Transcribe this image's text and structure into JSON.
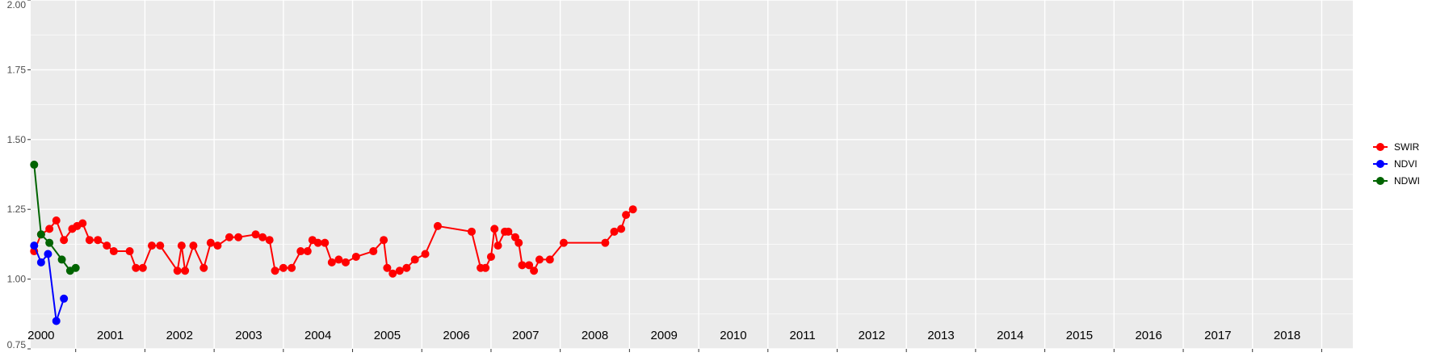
{
  "chart_data": {
    "type": "line",
    "title": "",
    "xlabel": "",
    "ylabel": "",
    "xlim": [
      1999.85,
      2018.95
    ],
    "ylim": [
      0.75,
      2.0
    ],
    "y_ticks": [
      "0.75",
      "1.00",
      "1.25",
      "1.50",
      "1.75",
      "2.00"
    ],
    "grid": true,
    "legend_position": "right",
    "year_labels": [
      {
        "x": 2000,
        "text": "2000"
      },
      {
        "x": 2001,
        "text": "2001"
      },
      {
        "x": 2002,
        "text": "2002"
      },
      {
        "x": 2003,
        "text": "2003"
      },
      {
        "x": 2004,
        "text": "2004"
      },
      {
        "x": 2005,
        "text": "2005"
      },
      {
        "x": 2006,
        "text": "2006"
      },
      {
        "x": 2007,
        "text": "2007"
      },
      {
        "x": 2008,
        "text": "2008"
      },
      {
        "x": 2009,
        "text": "2009"
      },
      {
        "x": 2010,
        "text": "2010"
      },
      {
        "x": 2011,
        "text": "2011"
      },
      {
        "x": 2012,
        "text": "2012"
      },
      {
        "x": 2013,
        "text": "2013"
      },
      {
        "x": 2014,
        "text": "2014"
      },
      {
        "x": 2015,
        "text": "2015"
      },
      {
        "x": 2016,
        "text": "2016"
      },
      {
        "x": 2017,
        "text": "2017"
      },
      {
        "x": 2018,
        "text": "2018"
      }
    ],
    "series": [
      {
        "name": "SWIR",
        "color": "#ff0000",
        "x": [
          1999.9,
          2000.0,
          2000.12,
          2000.22,
          2000.33,
          2000.45,
          2000.52,
          2000.6,
          2000.7,
          2000.82,
          2000.95,
          2001.05,
          2001.28,
          2001.37,
          2001.47,
          2001.6,
          2001.72,
          2001.97,
          2002.03,
          2002.08,
          2002.2,
          2002.35,
          2002.45,
          2002.55,
          2002.72,
          2002.85,
          2003.1,
          2003.2,
          2003.3,
          2003.38,
          2003.5,
          2003.62,
          2003.75,
          2003.85,
          2003.92,
          2004.0,
          2004.1,
          2004.2,
          2004.3,
          2004.4,
          2004.55,
          2004.8,
          2004.95,
          2005.0,
          2005.08,
          2005.18,
          2005.28,
          2005.4,
          2005.55,
          2005.73,
          2006.22,
          2006.35,
          2006.42,
          2006.5,
          2006.55,
          2006.6,
          2006.7,
          2006.75,
          2006.85,
          2006.9,
          2006.95,
          2007.05,
          2007.12,
          2007.2,
          2007.35,
          2007.55,
          2008.15,
          2008.28,
          2008.38,
          2008.45,
          2008.55
        ],
        "y": [
          1.1,
          1.16,
          1.18,
          1.21,
          1.14,
          1.18,
          1.19,
          1.2,
          1.14,
          1.14,
          1.12,
          1.1,
          1.1,
          1.04,
          1.04,
          1.12,
          1.12,
          1.03,
          1.12,
          1.03,
          1.12,
          1.04,
          1.13,
          1.12,
          1.15,
          1.15,
          1.16,
          1.15,
          1.14,
          1.03,
          1.04,
          1.04,
          1.1,
          1.1,
          1.14,
          1.13,
          1.13,
          1.06,
          1.07,
          1.06,
          1.08,
          1.1,
          1.14,
          1.04,
          1.02,
          1.03,
          1.04,
          1.07,
          1.09,
          1.19,
          1.17,
          1.04,
          1.04,
          1.08,
          1.18,
          1.12,
          1.17,
          1.17,
          1.15,
          1.13,
          1.05,
          1.05,
          1.03,
          1.07,
          1.07,
          1.13,
          1.13,
          1.17,
          1.18,
          1.23,
          1.25
        ]
      },
      {
        "name": "NDVI",
        "color": "#0000ff",
        "x": [
          1999.9,
          2000.0,
          2000.1,
          2000.22,
          2000.33
        ],
        "y": [
          1.12,
          1.06,
          1.09,
          0.85,
          0.93
        ]
      },
      {
        "name": "NDWI",
        "color": "#006400",
        "x": [
          1999.9,
          2000.0,
          2000.12,
          2000.3,
          2000.42,
          2000.5
        ],
        "y": [
          1.41,
          1.16,
          1.13,
          1.07,
          1.03,
          1.04
        ]
      }
    ]
  }
}
